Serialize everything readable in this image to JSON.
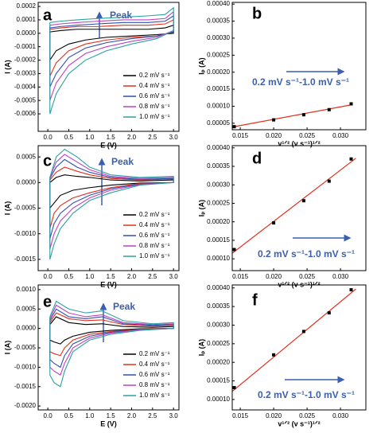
{
  "chart_data": [
    {
      "type": "line",
      "panel_label": "a",
      "annotation": "Peak",
      "xlabel": "E (V)",
      "ylabel": "I (A)",
      "legend": "lower right",
      "xlim": [
        -0.23,
        3.13
      ],
      "ylim": [
        -0.00073,
        0.00023
      ],
      "xticks": [
        {
          "value": 0,
          "label": "0.0"
        },
        0.5,
        {
          "value": 1,
          "label": "1.0"
        },
        1.5,
        {
          "value": 2,
          "label": "2.0"
        },
        2.5,
        {
          "value": 3,
          "label": "3.0"
        }
      ],
      "yticks": [
        0.0002,
        0.0001,
        {
          "value": 0,
          "label": "0.0000"
        },
        -0.0001,
        -0.0002,
        -0.0003,
        -0.0004,
        -0.0005,
        -0.0006
      ],
      "x": [
        0.05,
        0.3,
        0.7,
        1.2,
        1.8,
        2.4,
        2.8,
        3.0,
        3.0,
        2.6,
        2.0,
        1.4,
        0.9,
        0.5,
        0.2,
        0.05,
        0.05
      ],
      "series": [
        {
          "name": "0.2 mV s⁻¹",
          "color": "#000000",
          "values": [
            1e-05,
            2e-05,
            3e-05,
            3e-05,
            3e-05,
            3e-05,
            4e-05,
            6e-05,
            0.0,
            -1e-05,
            -2e-05,
            -3e-05,
            -5e-05,
            -8e-05,
            -0.00013,
            -0.0002,
            1e-05
          ]
        },
        {
          "name": "0.4 mV s⁻¹",
          "color": "#e0301e",
          "values": [
            3e-05,
            4e-05,
            5e-05,
            5e-05,
            6e-05,
            6e-05,
            7e-05,
            0.0001,
            1e-05,
            -2e-05,
            -3e-05,
            -5e-05,
            -8e-05,
            -0.00013,
            -0.00022,
            -0.00032,
            3e-05
          ]
        },
        {
          "name": "0.6 mV s⁻¹",
          "color": "#2f4fb0",
          "values": [
            4e-05,
            5e-05,
            6e-05,
            7e-05,
            8e-05,
            8e-05,
            9e-05,
            0.00013,
            1e-05,
            -2e-05,
            -4e-05,
            -7e-05,
            -0.00011,
            -0.00018,
            -0.0003,
            -0.0004,
            4e-05
          ]
        },
        {
          "name": "0.8 mV s⁻¹",
          "color": "#c040c0",
          "values": [
            6e-05,
            7e-05,
            8e-05,
            9e-05,
            0.0001,
            0.0001,
            0.00011,
            0.00016,
            2e-05,
            -3e-05,
            -6e-05,
            -0.0001,
            -0.00015,
            -0.00024,
            -0.00037,
            -0.0005,
            6e-05
          ]
        },
        {
          "name": "1.0 mV s⁻¹",
          "color": "#2aa0a0",
          "values": [
            8e-05,
            9e-05,
            0.0001,
            0.00011,
            0.00012,
            0.00013,
            0.00014,
            0.00019,
            2e-05,
            -4e-05,
            -8e-05,
            -0.00013,
            -0.0002,
            -0.0003,
            -0.00045,
            -0.0006,
            8e-05
          ]
        }
      ]
    },
    {
      "type": "scatter",
      "panel_label": "b",
      "annotation": "0.2 mV s⁻¹-1.0 mV s⁻¹",
      "xlabel": "v¹ᐟ² (v s⁻¹)¹ᐟ²",
      "ylabel": "Iₚ (A)",
      "xlim": [
        0.0138,
        0.0338
      ],
      "ylim": [
        3.1e-05,
        0.000405
      ],
      "xticks": [
        0.015,
        {
          "value": 0.02,
          "label": "0.020"
        },
        0.025,
        {
          "value": 0.03,
          "label": "0.030"
        }
      ],
      "yticks": [
        {
          "value": 0.0004,
          "label": "0.00040"
        },
        0.00035,
        {
          "value": 0.0003,
          "label": "0.00030"
        },
        0.00025,
        {
          "value": 0.0002,
          "label": "0.00020"
        },
        0.00015,
        {
          "value": 0.0001,
          "label": "0.00010"
        },
        5e-05
      ],
      "x": [
        0.0141,
        0.02,
        0.0245,
        0.0283,
        0.0316
      ],
      "values": [
        4e-05,
        6e-05,
        7.5e-05,
        9e-05,
        0.000107
      ],
      "color": "#000000",
      "fit_line": {
        "color": "#e0301e",
        "x": [
          0.0141,
          0.0316
        ],
        "values": [
          4e-05,
          0.000104
        ]
      }
    },
    {
      "type": "line",
      "panel_label": "c",
      "annotation": "Peak",
      "xlabel": "E (V)",
      "ylabel": "I (A)",
      "legend": "lower right",
      "xlim": [
        -0.23,
        3.13
      ],
      "ylim": [
        -0.00172,
        0.00072
      ],
      "xticks": [
        {
          "value": 0,
          "label": "0.0"
        },
        0.5,
        {
          "value": 1,
          "label": "1.0"
        },
        1.5,
        {
          "value": 2,
          "label": "2.0"
        },
        2.5,
        {
          "value": 3,
          "label": "3.0"
        }
      ],
      "yticks": [
        0.0005,
        {
          "value": 0,
          "label": "0.0000"
        },
        -0.0005,
        {
          "value": -0.001,
          "label": "-0.0010"
        },
        -0.0015
      ],
      "x": [
        0.05,
        0.2,
        0.4,
        0.7,
        1.0,
        1.5,
        2.2,
        3.0,
        3.0,
        2.2,
        1.5,
        1.0,
        0.6,
        0.3,
        0.15,
        0.05,
        0.05
      ],
      "series": [
        {
          "name": "0.2 mV s⁻¹",
          "color": "#000000",
          "values": [
            0.0,
            0.0001,
            0.00015,
            0.00012,
            0.0001,
            5e-05,
            3e-05,
            5e-05,
            0.0,
            -1e-05,
            -5e-05,
            -0.0001,
            -0.00015,
            -0.00025,
            -0.0004,
            -0.0005,
            0.0
          ]
        },
        {
          "name": "0.4 mV s⁻¹",
          "color": "#e0301e",
          "values": [
            5e-05,
            0.0002,
            0.0003,
            0.00022,
            0.00015,
            8e-05,
            5e-05,
            7e-05,
            0.0,
            -2e-05,
            -0.0001,
            -0.0002,
            -0.0003,
            -0.00045,
            -0.0006,
            -0.0009,
            5e-05
          ]
        },
        {
          "name": "0.6 mV s⁻¹",
          "color": "#2f4fb0",
          "values": [
            8e-05,
            0.0003,
            0.00045,
            0.0003,
            0.0002,
            0.0001,
            6e-05,
            8e-05,
            0.0,
            -3e-05,
            -0.00012,
            -0.00025,
            -0.0004,
            -0.0006,
            -0.0008,
            -0.0011,
            8e-05
          ]
        },
        {
          "name": "0.8 mV s⁻¹",
          "color": "#c040c0",
          "values": [
            0.0001,
            0.0004,
            0.00055,
            0.0004,
            0.00025,
            0.00012,
            8e-05,
            0.0001,
            0.0,
            -4e-05,
            -0.00015,
            -0.0003,
            -0.0005,
            -0.00075,
            -0.001,
            -0.0013,
            0.0001
          ]
        },
        {
          "name": "1.0 mV s⁻¹",
          "color": "#2aa0a0",
          "values": [
            0.0001,
            0.0005,
            0.00065,
            0.0005,
            0.0003,
            0.00015,
            0.0001,
            0.00012,
            0.0,
            -5e-05,
            -0.0002,
            -0.00035,
            -0.0006,
            -0.0009,
            -0.0012,
            -0.0015,
            0.0001
          ]
        }
      ]
    },
    {
      "type": "scatter",
      "panel_label": "d",
      "annotation": "0.2 mV s⁻¹-1.0 mV s⁻¹",
      "xlabel": "v¹ᐟ² (v s⁻¹)¹ᐟ²",
      "ylabel": "Iₚ (A)",
      "xlim": [
        0.0138,
        0.0338
      ],
      "ylim": [
        6.8e-05,
        0.000406
      ],
      "xticks": [
        0.015,
        {
          "value": 0.02,
          "label": "0.020"
        },
        0.025,
        {
          "value": 0.03,
          "label": "0.030"
        }
      ],
      "yticks": [
        {
          "value": 0.0004,
          "label": "0.00040"
        },
        0.00035,
        {
          "value": 0.0003,
          "label": "0.00030"
        },
        0.00025,
        {
          "value": 0.0002,
          "label": "0.00020"
        },
        0.00015,
        {
          "value": 0.0001,
          "label": "0.00010"
        }
      ],
      "x": [
        0.0141,
        0.02,
        0.0245,
        0.0283,
        0.0316
      ],
      "values": [
        0.000125,
        0.000197,
        0.000257,
        0.00031,
        0.00037
      ],
      "color": "#000000",
      "fit_line": {
        "color": "#e0301e",
        "x": [
          0.0138,
          0.0323
        ],
        "values": [
          0.000115,
          0.000372
        ]
      }
    },
    {
      "type": "line",
      "panel_label": "e",
      "annotation": "Peak",
      "xlabel": "E (V)",
      "ylabel": "I (A)",
      "legend": "lower right",
      "xlim": [
        -0.23,
        3.13
      ],
      "ylim": [
        -0.0021,
        0.00112
      ],
      "xticks": [
        {
          "value": 0,
          "label": "0.0"
        },
        0.5,
        {
          "value": 1,
          "label": "1.0"
        },
        1.5,
        {
          "value": 2,
          "label": "2.0"
        },
        2.5,
        {
          "value": 3,
          "label": "3.0"
        }
      ],
      "yticks": [
        {
          "value": 0.001,
          "label": "0.0010"
        },
        0.0005,
        {
          "value": 0,
          "label": "0.0000"
        },
        -0.0005,
        {
          "value": -0.001,
          "label": "-0.0010"
        },
        -0.0015,
        {
          "value": -0.002,
          "label": "-0.0020"
        }
      ],
      "x": [
        0.05,
        0.2,
        0.5,
        0.9,
        1.3,
        1.8,
        2.5,
        3.0,
        3.0,
        2.2,
        1.5,
        1.0,
        0.6,
        0.4,
        0.3,
        0.15,
        0.05,
        0.05
      ],
      "series": [
        {
          "name": "0.2 mV s⁻¹",
          "color": "#000000",
          "values": [
            0.0001,
            0.0003,
            0.00015,
            0.0001,
            0.00012,
            5e-05,
            3e-05,
            5e-05,
            0.0,
            -1e-05,
            -5e-05,
            -0.0001,
            -0.0002,
            -0.0003,
            -0.0004,
            -0.00035,
            -0.0003,
            0.0001
          ]
        },
        {
          "name": "0.4 mV s⁻¹",
          "color": "#e0301e",
          "values": [
            0.00015,
            0.0004,
            0.00025,
            0.0002,
            0.00022,
            0.0001,
            6e-05,
            8e-05,
            0.0,
            -2e-05,
            -8e-05,
            -0.00015,
            -0.0003,
            -0.0005,
            -0.0007,
            -0.00065,
            -0.0006,
            0.00015
          ]
        },
        {
          "name": "0.6 mV s⁻¹",
          "color": "#2f4fb0",
          "values": [
            0.0002,
            0.0005,
            0.0003,
            0.00025,
            0.0003,
            0.00012,
            8e-05,
            0.0001,
            0.0,
            -3e-05,
            -0.0001,
            -0.0002,
            -0.0004,
            -0.0007,
            -0.001,
            -0.0009,
            -0.0008,
            0.0002
          ]
        },
        {
          "name": "0.8 mV s⁻¹",
          "color": "#c040c0",
          "values": [
            0.00025,
            0.0006,
            0.0004,
            0.0003,
            0.00035,
            0.00015,
            0.0001,
            0.00012,
            0.0,
            -4e-05,
            -0.00012,
            -0.00025,
            -0.0005,
            -0.0009,
            -0.0012,
            -0.0011,
            -0.001,
            0.00025
          ]
        },
        {
          "name": "1.0 mV s⁻¹",
          "color": "#2aa0a0",
          "values": [
            0.0003,
            0.0007,
            0.0005,
            0.0004,
            0.00045,
            0.0002,
            0.00012,
            0.00015,
            0.0,
            -5e-05,
            -0.00015,
            -0.0003,
            -0.0006,
            -0.0011,
            -0.0015,
            -0.0014,
            -0.0012,
            0.0003
          ]
        }
      ]
    },
    {
      "type": "scatter",
      "panel_label": "f",
      "annotation": "0.2 mV s⁻¹-1.0 mV s⁻¹",
      "xlabel": "v¹ᐟ² (v s⁻¹)¹ᐟ²",
      "ylabel": "Iₚ (A)",
      "xlim": [
        0.0138,
        0.0338
      ],
      "ylim": [
        7.2e-05,
        0.000408
      ],
      "xticks": [
        0.015,
        {
          "value": 0.02,
          "label": "0.020"
        },
        0.025,
        {
          "value": 0.03,
          "label": "0.030"
        }
      ],
      "yticks": [
        {
          "value": 0.0004,
          "label": "0.00040"
        },
        0.00035,
        {
          "value": 0.0003,
          "label": "0.00030"
        },
        0.00025,
        {
          "value": 0.0002,
          "label": "0.00020"
        },
        0.00015,
        {
          "value": 0.0001,
          "label": "0.00010"
        }
      ],
      "x": [
        0.0141,
        0.02,
        0.0245,
        0.0283,
        0.0316
      ],
      "values": [
        0.000132,
        0.00022,
        0.000283,
        0.000333,
        0.000395
      ],
      "color": "#000000",
      "fit_line": {
        "color": "#e0301e",
        "x": [
          0.0138,
          0.0323
        ],
        "values": [
          0.000122,
          0.000397
        ]
      }
    }
  ]
}
